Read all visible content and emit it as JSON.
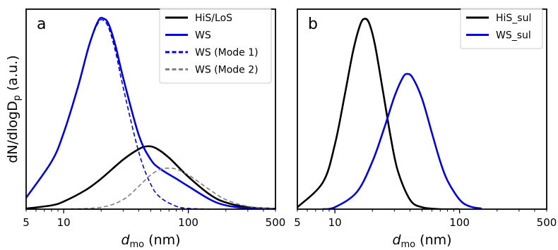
{
  "chart_data": [
    {
      "type": "line",
      "panel_label": "a",
      "xscale": "log",
      "xlim": [
        5,
        500
      ],
      "xticks": [
        5,
        10,
        100,
        500
      ],
      "xticklabels": [
        "5",
        "10",
        "100",
        "500"
      ],
      "xlabel_main": "d",
      "xlabel_sub": "mo",
      "xlabel_unit": " (nm)",
      "ylabel_main": "dN/dlogD",
      "ylabel_sub": "p",
      "ylabel_unit": " (a.u.)",
      "ylim": [
        0,
        1.05
      ],
      "yticks": "none",
      "grid": false,
      "legend_position": "top-right",
      "series": [
        {
          "name": "HiS/LoS",
          "color": "#000000",
          "dash": "solid",
          "width": 2.6,
          "x": [
            5,
            8,
            10,
            15,
            20,
            30,
            40,
            47,
            55,
            70,
            100,
            150,
            200,
            300,
            500
          ],
          "y": [
            0.003,
            0.02,
            0.04,
            0.1,
            0.16,
            0.26,
            0.315,
            0.33,
            0.32,
            0.27,
            0.17,
            0.075,
            0.035,
            0.01,
            0.002
          ]
        },
        {
          "name": "WS",
          "color": "#0000e0",
          "dash": "solid",
          "width": 2.6,
          "x": [
            5,
            8,
            10,
            13,
            16,
            19,
            21,
            23,
            26,
            30,
            40,
            50,
            60,
            80,
            100,
            150,
            200,
            300,
            500
          ],
          "y": [
            0.06,
            0.25,
            0.4,
            0.64,
            0.86,
            0.99,
            1.0,
            0.97,
            0.86,
            0.69,
            0.39,
            0.26,
            0.21,
            0.16,
            0.12,
            0.05,
            0.02,
            0.005,
            0.001
          ]
        },
        {
          "name": "WS (Mode 1)",
          "color": "#0000e0",
          "dash": "dashed",
          "width": 1.6,
          "x": [
            5,
            8,
            10,
            13,
            16,
            19,
            21,
            23,
            26,
            30,
            40,
            50,
            60,
            80,
            100,
            150
          ],
          "y": [
            0.06,
            0.25,
            0.4,
            0.64,
            0.86,
            0.98,
            0.99,
            0.95,
            0.83,
            0.64,
            0.3,
            0.13,
            0.06,
            0.015,
            0.004,
            0.0
          ]
        },
        {
          "name": "WS (Mode 2)",
          "color": "#808080",
          "dash": "dashed",
          "width": 1.6,
          "x": [
            10,
            20,
            30,
            40,
            50,
            60,
            70,
            80,
            100,
            150,
            200,
            300,
            500
          ],
          "y": [
            0.0,
            0.01,
            0.05,
            0.12,
            0.18,
            0.21,
            0.215,
            0.21,
            0.18,
            0.1,
            0.05,
            0.015,
            0.002
          ]
        }
      ]
    },
    {
      "type": "line",
      "panel_label": "b",
      "xscale": "log",
      "xlim": [
        5,
        500
      ],
      "xticks": [
        5,
        10,
        100,
        500
      ],
      "xticklabels": [
        "5",
        "10",
        "100",
        "500"
      ],
      "xlabel_main": "d",
      "xlabel_sub": "mo",
      "xlabel_unit": " (nm)",
      "ylim": [
        0,
        1.05
      ],
      "yticks": "none",
      "grid": false,
      "legend_position": "top-right",
      "series": [
        {
          "name": "HiS_sul",
          "color": "#000000",
          "dash": "solid",
          "width": 2.6,
          "x": [
            5,
            8,
            10,
            12,
            14,
            16,
            17.5,
            19,
            21,
            24,
            28,
            32,
            40,
            50,
            70,
            100
          ],
          "y": [
            0.01,
            0.14,
            0.34,
            0.6,
            0.83,
            0.97,
            1.0,
            0.97,
            0.86,
            0.64,
            0.38,
            0.2,
            0.05,
            0.01,
            0.0,
            0.0
          ]
        },
        {
          "name": "WS_sul",
          "color": "#0000e0",
          "dash": "solid",
          "width": 2.6,
          "x": [
            8,
            10,
            15,
            20,
            25,
            30,
            35,
            38,
            42,
            50,
            60,
            70,
            80,
            100,
            120,
            150
          ],
          "y": [
            0.0,
            0.01,
            0.09,
            0.25,
            0.43,
            0.59,
            0.69,
            0.71,
            0.69,
            0.58,
            0.4,
            0.25,
            0.15,
            0.05,
            0.015,
            0.003
          ]
        }
      ]
    }
  ]
}
